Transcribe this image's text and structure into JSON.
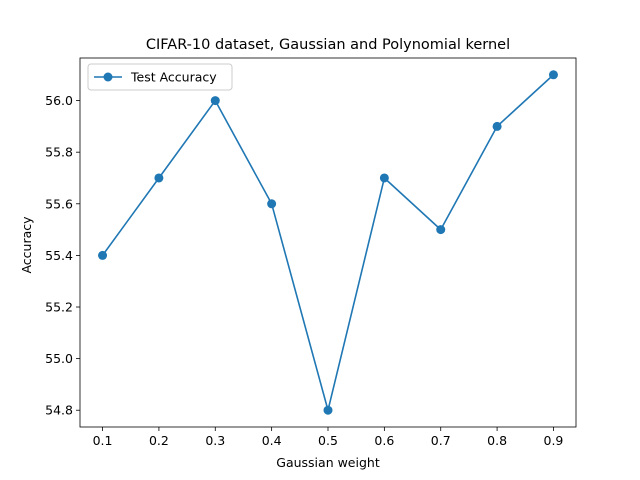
{
  "chart_data": {
    "type": "line",
    "title": "CIFAR-10 dataset, Gaussian and Polynomial kernel",
    "xlabel": "Gaussian weight",
    "ylabel": "Accuracy",
    "x": [
      0.1,
      0.2,
      0.3,
      0.4,
      0.5,
      0.6,
      0.7,
      0.8,
      0.9
    ],
    "series": [
      {
        "name": "Test Accuracy",
        "values": [
          55.4,
          55.7,
          56.0,
          55.6,
          54.8,
          55.7,
          55.5,
          55.9,
          56.1
        ],
        "color": "#1f77b4",
        "marker": "circle"
      }
    ],
    "xticks": [
      "0.1",
      "0.2",
      "0.3",
      "0.4",
      "0.5",
      "0.6",
      "0.7",
      "0.8",
      "0.9"
    ],
    "yticks": [
      "54.8",
      "55.0",
      "55.2",
      "55.4",
      "55.6",
      "55.8",
      "56.0"
    ],
    "xlim": [
      0.06,
      0.94
    ],
    "ylim": [
      54.735,
      56.165
    ],
    "grid": false,
    "legend_position": "upper left"
  }
}
